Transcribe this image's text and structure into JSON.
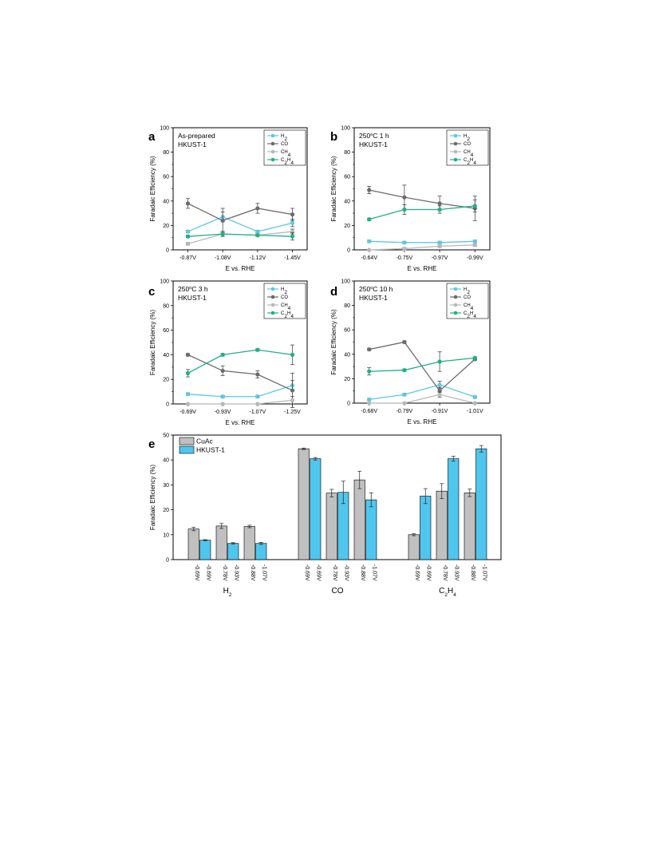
{
  "chart_data": [
    {
      "id": "a",
      "type": "line",
      "panel_label": "a",
      "annotation": [
        "As-prepared",
        "HKUST-1"
      ],
      "categories": [
        "-0.87V",
        "-1.08V",
        "-1.12V",
        "-1.45V"
      ],
      "xlabel": "E vs. RHE",
      "ylabel": "Faradaic Efficiency (%)",
      "ylim": [
        0,
        100
      ],
      "yticks": [
        0,
        20,
        40,
        60,
        80,
        100
      ],
      "legend_position": "top-right",
      "series": [
        {
          "name": "H2",
          "values": [
            15,
            27,
            15,
            22
          ],
          "errors": [
            1,
            4,
            1,
            3
          ],
          "color": "#5bc8e8"
        },
        {
          "name": "CO",
          "values": [
            38,
            24,
            34,
            29
          ],
          "errors": [
            4,
            10,
            4,
            5
          ],
          "color": "#6b6b6b"
        },
        {
          "name": "CH4",
          "values": [
            5,
            13,
            12,
            15
          ],
          "errors": [
            1,
            2,
            1,
            2
          ],
          "color": "#b8b8b8"
        },
        {
          "name": "C2H4",
          "values": [
            11,
            13,
            12,
            11
          ],
          "errors": [
            1,
            2,
            1,
            3
          ],
          "color": "#1fb088"
        }
      ]
    },
    {
      "id": "b",
      "type": "line",
      "panel_label": "b",
      "annotation": [
        "250oC 1 h",
        "HKUST-1"
      ],
      "categories": [
        "-0.64V",
        "-0.75V",
        "-0.97V",
        "-0.99V"
      ],
      "xlabel": "E vs. RHE",
      "ylabel": "Faradaic Efficiency (%)",
      "ylim": [
        0,
        100
      ],
      "yticks": [
        0,
        20,
        40,
        60,
        80,
        100
      ],
      "legend_position": "top-right",
      "series": [
        {
          "name": "H2",
          "values": [
            7,
            6,
            6,
            7
          ],
          "errors": [
            1,
            1,
            1,
            1
          ],
          "color": "#5bc8e8"
        },
        {
          "name": "CO",
          "values": [
            49,
            43,
            38,
            34
          ],
          "errors": [
            3,
            10,
            6,
            10
          ],
          "color": "#6b6b6b"
        },
        {
          "name": "CH4",
          "values": [
            0,
            1,
            3,
            4
          ],
          "errors": [
            0,
            1,
            1,
            1
          ],
          "color": "#b8b8b8"
        },
        {
          "name": "C2H4",
          "values": [
            25,
            33,
            33,
            36
          ],
          "errors": [
            1,
            4,
            3,
            5
          ],
          "color": "#1fb088"
        }
      ]
    },
    {
      "id": "c",
      "type": "line",
      "panel_label": "c",
      "annotation": [
        "250oC 3 h",
        "HKUST-1"
      ],
      "categories": [
        "-0.69V",
        "-0.93V",
        "-1.07V",
        "-1.25V"
      ],
      "xlabel": "E vs. RHE",
      "ylabel": "Faradaic Efficiency (%)",
      "ylim": [
        0,
        100
      ],
      "yticks": [
        0,
        20,
        40,
        60,
        80,
        100
      ],
      "legend_position": "top-right",
      "series": [
        {
          "name": "H2",
          "values": [
            8,
            6,
            6,
            15
          ],
          "errors": [
            1,
            1,
            1,
            4
          ],
          "color": "#5bc8e8"
        },
        {
          "name": "CO",
          "values": [
            40,
            27,
            24,
            11
          ],
          "errors": [
            1,
            4,
            3,
            14
          ],
          "color": "#6b6b6b"
        },
        {
          "name": "CH4",
          "values": [
            0,
            0,
            0,
            3
          ],
          "errors": [
            0,
            0,
            0,
            3
          ],
          "color": "#b8b8b8"
        },
        {
          "name": "C2H4",
          "values": [
            25,
            40,
            44,
            40
          ],
          "errors": [
            3,
            1,
            1,
            8
          ],
          "color": "#1fb088"
        }
      ]
    },
    {
      "id": "d",
      "type": "line",
      "panel_label": "d",
      "annotation": [
        "250oC 10 h",
        "HKUST-1"
      ],
      "categories": [
        "-0.68V",
        "-0.79V",
        "-0.91V",
        "-1.01V"
      ],
      "xlabel": "E vs. RHE",
      "ylabel": "Faradaic Efficiency (%)",
      "ylim": [
        0,
        100
      ],
      "yticks": [
        0,
        20,
        40,
        60,
        80,
        100
      ],
      "legend_position": "top-right",
      "series": [
        {
          "name": "H2",
          "values": [
            3,
            7,
            15,
            5
          ],
          "errors": [
            1,
            1,
            3,
            1
          ],
          "color": "#5bc8e8"
        },
        {
          "name": "CO",
          "values": [
            44,
            50,
            10,
            36
          ],
          "errors": [
            1,
            1,
            3,
            1
          ],
          "color": "#6b6b6b"
        },
        {
          "name": "CH4",
          "values": [
            0,
            0,
            7,
            0
          ],
          "errors": [
            0,
            0,
            2,
            0
          ],
          "color": "#b8b8b8"
        },
        {
          "name": "C2H4",
          "values": [
            26,
            27,
            34,
            37
          ],
          "errors": [
            3,
            1,
            8,
            1
          ],
          "color": "#1fb088"
        }
      ]
    },
    {
      "id": "e",
      "type": "bar",
      "panel_label": "e",
      "ylabel": "Faradaic Efficiency (%)",
      "ylim": [
        0,
        50
      ],
      "yticks": [
        0,
        10,
        20,
        30,
        40,
        50
      ],
      "legend_position": "top-left",
      "legend": [
        {
          "name": "CuAc",
          "color": "#c0c0c0"
        },
        {
          "name": "HKUST-1",
          "color": "#4fc6ee"
        }
      ],
      "groups": [
        {
          "name": "H2",
          "pairs": [
            {
              "cuac_label": "-0.69V",
              "cuac": 12.3,
              "cuac_err": 0.7,
              "hkust_label": "-0.69V",
              "hkust": 7.8,
              "hkust_err": 0.2
            },
            {
              "cuac_label": "-0.78V",
              "cuac": 13.5,
              "cuac_err": 1.0,
              "hkust_label": "-0.93V",
              "hkust": 6.5,
              "hkust_err": 0.3
            },
            {
              "cuac_label": "-0.88V",
              "cuac": 13.3,
              "cuac_err": 0.5,
              "hkust_label": "-1.07V",
              "hkust": 6.5,
              "hkust_err": 0.4
            }
          ]
        },
        {
          "name": "CO",
          "pairs": [
            {
              "cuac_label": "-0.69V",
              "cuac": 44.5,
              "cuac_err": 0.3,
              "hkust_label": "-0.69V",
              "hkust": 40.5,
              "hkust_err": 0.5
            },
            {
              "cuac_label": "-0.78V",
              "cuac": 26.7,
              "cuac_err": 1.5,
              "hkust_label": "-0.93V",
              "hkust": 27.0,
              "hkust_err": 4.5
            },
            {
              "cuac_label": "-0.88V",
              "cuac": 32.0,
              "cuac_err": 3.5,
              "hkust_label": "-1.07V",
              "hkust": 24.0,
              "hkust_err": 2.8
            }
          ]
        },
        {
          "name": "C2H4",
          "pairs": [
            {
              "cuac_label": "-0.69V",
              "cuac": 10.0,
              "cuac_err": 0.4,
              "hkust_label": "-0.69V",
              "hkust": 25.5,
              "hkust_err": 3.0
            },
            {
              "cuac_label": "-0.78V",
              "cuac": 27.5,
              "cuac_err": 3.0,
              "hkust_label": "-0.93V",
              "hkust": 40.5,
              "hkust_err": 1.0
            },
            {
              "cuac_label": "-0.88V",
              "cuac": 26.8,
              "cuac_err": 1.5,
              "hkust_label": "-1.07V",
              "hkust": 44.5,
              "hkust_err": 1.3
            }
          ]
        }
      ]
    }
  ]
}
